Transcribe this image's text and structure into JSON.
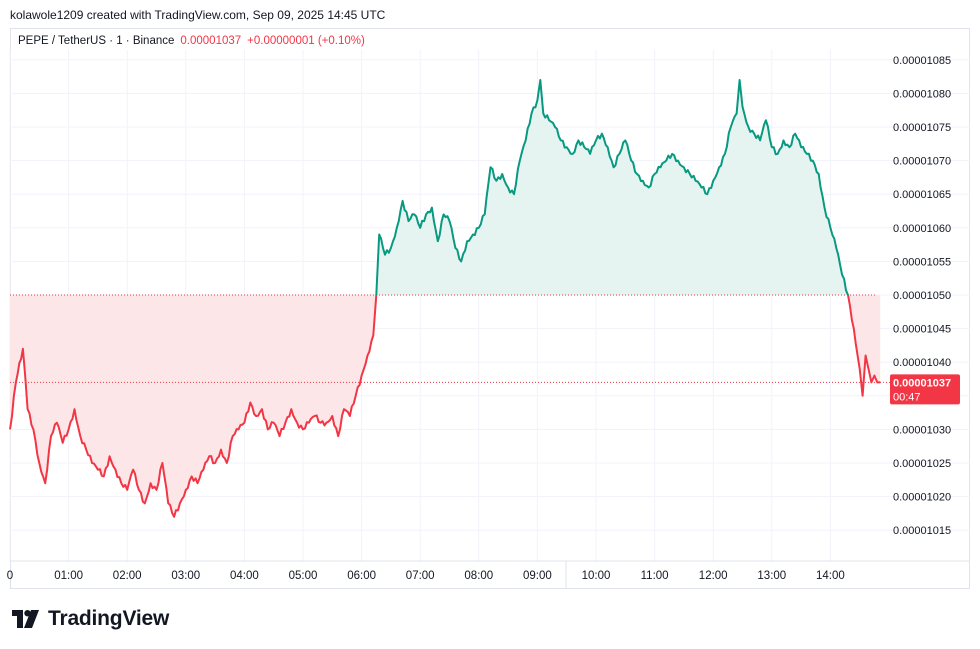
{
  "header": {
    "credit": "kolawole1209 created with TradingView.com, Sep 09, 2025 14:45 UTC"
  },
  "legend": {
    "symbol": "PEPE / TetherUS · 1 · Binance",
    "last": "0.00001037",
    "change": "+0.00000001 (+0.10%)"
  },
  "price_label": {
    "value": "0.00001037",
    "countdown": "00:47"
  },
  "brand": {
    "name": "TradingView"
  },
  "colors": {
    "up": "#089981",
    "down": "#f23645",
    "up_fill": "#e6f4f1",
    "down_fill": "#fde6e8",
    "grid": "#f0f3fa",
    "text": "#131722"
  },
  "chart_data": {
    "type": "area",
    "title": "",
    "xlabel": "",
    "ylabel": "",
    "baseline": 1.05e-05,
    "ylim": [
      1.01e-05,
      1.088e-05
    ],
    "xlim": [
      0.0,
      14.85
    ],
    "y_ticks": [
      "0.00001015",
      "0.00001020",
      "0.00001025",
      "0.00001030",
      "0.00001035",
      "0.00001040",
      "0.00001045",
      "0.00001050",
      "0.00001055",
      "0.00001060",
      "0.00001065",
      "0.00001070",
      "0.00001075",
      "0.00001080",
      "0.00001085"
    ],
    "x_ticks": [
      {
        "v": 0,
        "label": "0"
      },
      {
        "v": 1,
        "label": "01:00"
      },
      {
        "v": 2,
        "label": "02:00"
      },
      {
        "v": 3,
        "label": "03:00"
      },
      {
        "v": 4,
        "label": "04:00"
      },
      {
        "v": 5,
        "label": "05:00"
      },
      {
        "v": 6,
        "label": "06:00"
      },
      {
        "v": 7,
        "label": "07:00"
      },
      {
        "v": 8,
        "label": "08:00"
      },
      {
        "v": 9,
        "label": "09:00"
      },
      {
        "v": 10,
        "label": "10:00"
      },
      {
        "v": 11,
        "label": "11:00"
      },
      {
        "v": 12,
        "label": "12:00"
      },
      {
        "v": 13,
        "label": "13:00"
      },
      {
        "v": 14,
        "label": "14:00"
      }
    ],
    "series": [
      {
        "x": [
          0,
          0.1,
          0.22,
          0.3,
          0.4,
          0.5,
          0.6,
          0.7,
          0.8,
          0.9,
          1.0,
          1.1,
          1.2,
          1.3,
          1.4,
          1.5,
          1.6,
          1.7,
          1.8,
          1.9,
          2.0,
          2.1,
          2.2,
          2.3,
          2.4,
          2.5,
          2.6,
          2.7,
          2.8,
          2.9,
          3.0,
          3.1,
          3.2,
          3.3,
          3.4,
          3.5,
          3.6,
          3.7,
          3.8,
          3.9,
          4.0,
          4.1,
          4.2,
          4.3,
          4.4,
          4.5,
          4.6,
          4.7,
          4.8,
          4.9,
          5.0,
          5.1,
          5.2,
          5.3,
          5.4,
          5.5,
          5.6,
          5.7,
          5.8,
          5.9,
          6.0,
          6.1,
          6.2,
          6.25,
          6.3,
          6.4,
          6.5,
          6.6,
          6.7,
          6.8,
          6.9,
          7.0,
          7.1,
          7.2,
          7.3,
          7.4,
          7.5,
          7.6,
          7.7,
          7.8,
          7.9,
          8.0,
          8.1,
          8.2,
          8.3,
          8.4,
          8.5,
          8.6,
          8.7,
          8.8,
          8.9,
          9.0,
          9.05,
          9.1,
          9.2,
          9.3,
          9.4,
          9.5,
          9.6,
          9.7,
          9.8,
          9.9,
          10.0,
          10.1,
          10.2,
          10.3,
          10.4,
          10.5,
          10.6,
          10.7,
          10.8,
          10.9,
          11.0,
          11.1,
          11.2,
          11.3,
          11.4,
          11.5,
          11.6,
          11.7,
          11.8,
          11.9,
          12.0,
          12.1,
          12.2,
          12.3,
          12.4,
          12.45,
          12.5,
          12.6,
          12.7,
          12.8,
          12.9,
          13.0,
          13.1,
          13.2,
          13.3,
          13.4,
          13.5,
          13.6,
          13.7,
          13.8,
          13.9,
          14.0,
          14.1,
          14.2,
          14.3,
          14.4,
          14.5,
          14.55,
          14.6,
          14.65,
          14.7,
          14.75,
          14.8,
          14.85
        ],
        "y": [
          1.03e-05,
          1.037e-05,
          1.042e-05,
          1.033e-05,
          1.03e-05,
          1.025e-05,
          1.022e-05,
          1.029e-05,
          1.031e-05,
          1.028e-05,
          1.03e-05,
          1.033e-05,
          1.029e-05,
          1.027e-05,
          1.025e-05,
          1.024e-05,
          1.023e-05,
          1.026e-05,
          1.024e-05,
          1.022e-05,
          1.021e-05,
          1.024e-05,
          1.021e-05,
          1.019e-05,
          1.022e-05,
          1.021e-05,
          1.025e-05,
          1.019e-05,
          1.017e-05,
          1.019e-05,
          1.021e-05,
          1.023e-05,
          1.022e-05,
          1.024e-05,
          1.026e-05,
          1.025e-05,
          1.027e-05,
          1.025e-05,
          1.029e-05,
          1.03e-05,
          1.031e-05,
          1.034e-05,
          1.032e-05,
          1.033e-05,
          1.03e-05,
          1.031e-05,
          1.029e-05,
          1.031e-05,
          1.033e-05,
          1.031e-05,
          1.03e-05,
          1.031e-05,
          1.032e-05,
          1.031e-05,
          1.031e-05,
          1.032e-05,
          1.029e-05,
          1.033e-05,
          1.032e-05,
          1.035e-05,
          1.038e-05,
          1.041e-05,
          1.044e-05,
          1.05e-05,
          1.059e-05,
          1.056e-05,
          1.057e-05,
          1.06e-05,
          1.064e-05,
          1.061e-05,
          1.062e-05,
          1.06e-05,
          1.062e-05,
          1.063e-05,
          1.058e-05,
          1.062e-05,
          1.061e-05,
          1.057e-05,
          1.055e-05,
          1.058e-05,
          1.059e-05,
          1.06e-05,
          1.062e-05,
          1.069e-05,
          1.067e-05,
          1.068e-05,
          1.066e-05,
          1.065e-05,
          1.07e-05,
          1.073e-05,
          1.077e-05,
          1.079e-05,
          1.082e-05,
          1.077e-05,
          1.076e-05,
          1.075e-05,
          1.073e-05,
          1.072e-05,
          1.071e-05,
          1.073e-05,
          1.072e-05,
          1.071e-05,
          1.073e-05,
          1.074e-05,
          1.072e-05,
          1.069e-05,
          1.071e-05,
          1.073e-05,
          1.07e-05,
          1.068e-05,
          1.067e-05,
          1.066e-05,
          1.068e-05,
          1.069e-05,
          1.07e-05,
          1.071e-05,
          1.07e-05,
          1.069e-05,
          1.068e-05,
          1.067e-05,
          1.066e-05,
          1.065e-05,
          1.067e-05,
          1.069e-05,
          1.071e-05,
          1.075e-05,
          1.077e-05,
          1.082e-05,
          1.078e-05,
          1.075e-05,
          1.074e-05,
          1.073e-05,
          1.076e-05,
          1.072e-05,
          1.071e-05,
          1.073e-05,
          1.072e-05,
          1.074e-05,
          1.072e-05,
          1.071e-05,
          1.07e-05,
          1.068e-05,
          1.063e-05,
          1.06e-05,
          1.057e-05,
          1.053e-05,
          1.05e-05,
          1.045e-05,
          1.039e-05,
          1.035e-05,
          1.041e-05,
          1.039e-05,
          1.037e-05,
          1.038e-05,
          1.037e-05,
          1.037e-05
        ]
      }
    ]
  }
}
